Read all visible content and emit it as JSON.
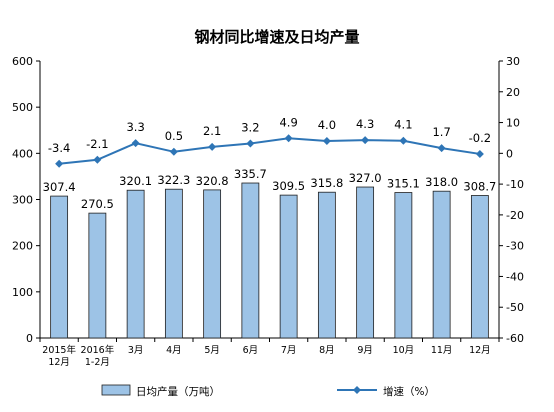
{
  "chart_data": {
    "type": "bar",
    "title": "钢材同比增速及日均产量",
    "categories": [
      [
        "2015年",
        "12月"
      ],
      [
        "2016年",
        "1-2月"
      ],
      [
        "3月"
      ],
      [
        "4月"
      ],
      [
        "5月"
      ],
      [
        "6月"
      ],
      [
        "7月"
      ],
      [
        "8月"
      ],
      [
        "9月"
      ],
      [
        "10月"
      ],
      [
        "11月"
      ],
      [
        "12月"
      ]
    ],
    "series": [
      {
        "name": "日均产量（万吨）",
        "type": "bar",
        "axis": "left",
        "values": [
          307.4,
          270.5,
          320.1,
          322.3,
          320.8,
          335.7,
          309.5,
          315.8,
          327.0,
          315.1,
          318.0,
          308.7
        ],
        "labels": [
          "307.4",
          "270.5",
          "320.1",
          "322.3",
          "320.8",
          "335.7",
          "309.5",
          "315.8",
          "327.0",
          "315.1",
          "318.0",
          "308.7"
        ]
      },
      {
        "name": "增速（%）",
        "type": "line",
        "axis": "right",
        "values": [
          -3.4,
          -2.1,
          3.3,
          0.5,
          2.1,
          3.2,
          4.9,
          4.0,
          4.3,
          4.1,
          1.7,
          -0.2
        ],
        "labels": [
          "-3.4",
          "-2.1",
          "3.3",
          "0.5",
          "2.1",
          "3.2",
          "4.9",
          "4.0",
          "4.3",
          "4.1",
          "1.7",
          "-0.2"
        ]
      }
    ],
    "y_left": {
      "ylim": [
        0,
        600
      ],
      "ticks": [
        "0",
        "100",
        "200",
        "300",
        "400",
        "500",
        "600"
      ]
    },
    "y_right": {
      "ylim": [
        -60,
        30
      ],
      "ticks": [
        "-60",
        "-50",
        "-40",
        "-30",
        "-20",
        "-10",
        "0",
        "10",
        "20",
        "30"
      ]
    },
    "legend": "bottom",
    "grid": false,
    "colors": {
      "bar_fill": "#9DC3E6",
      "bar_stroke": "#1F1F1F",
      "line": "#2E75B6",
      "axis": "#000000"
    }
  }
}
